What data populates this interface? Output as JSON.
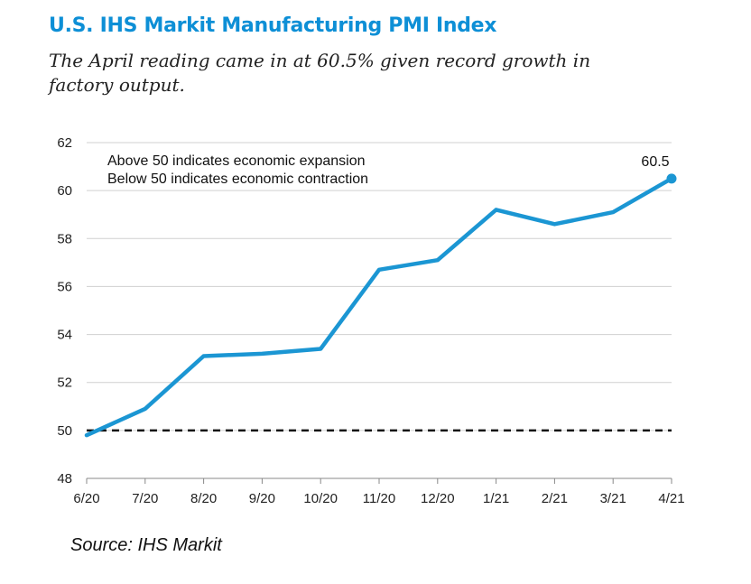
{
  "title": "U.S. IHS Markit Manufacturing PMI Index",
  "subtitle": "The April reading came in at 60.5% given record growth in factory output.",
  "source": "Source:  IHS Markit",
  "notes": [
    "Above 50 indicates economic expansion",
    "Below 50 indicates economic contraction"
  ],
  "colors": {
    "title": "#0d8fd6",
    "line": "#1b96d3",
    "grid": "#d0d0d0",
    "threshold": "#111111"
  },
  "chart_data": {
    "type": "line",
    "categories": [
      "6/20",
      "7/20",
      "8/20",
      "9/20",
      "10/20",
      "11/20",
      "12/20",
      "1/21",
      "2/21",
      "3/21",
      "4/21"
    ],
    "series": [
      {
        "values": [
          49.8,
          50.9,
          53.1,
          53.2,
          53.4,
          56.7,
          57.1,
          59.2,
          58.6,
          59.1,
          60.5
        ]
      }
    ],
    "ylim": [
      48,
      62
    ],
    "yticks": [
      48,
      50,
      52,
      54,
      56,
      58,
      60,
      62
    ],
    "reference_line": {
      "y": 50,
      "style": "dashed"
    },
    "data_labels": [
      {
        "index": 10,
        "text": "60.5"
      }
    ],
    "grid": true,
    "legend": "none"
  }
}
